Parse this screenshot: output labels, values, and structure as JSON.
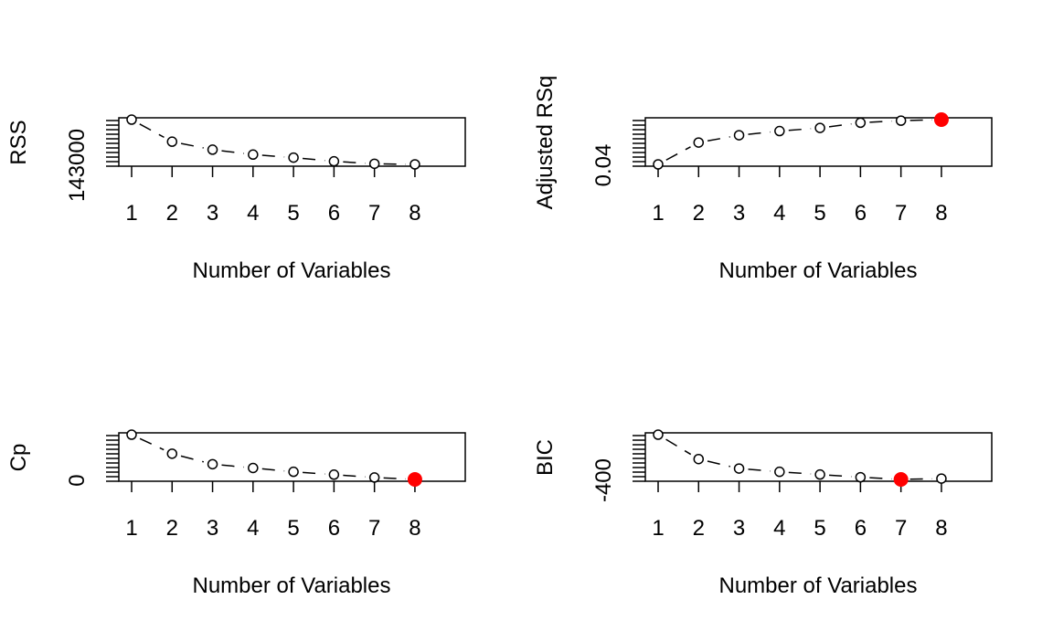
{
  "figure": {
    "colors": {
      "axis": "#000000",
      "point": "#000000",
      "highlight": "#ff0000",
      "background": "#ffffff"
    }
  },
  "chart_data": [
    {
      "type": "line",
      "line_style": "dashed",
      "marker": "open-circle",
      "xlabel": "Number of Variables",
      "ylabel": "RSS",
      "x": [
        1,
        2,
        3,
        4,
        5,
        6,
        7,
        8
      ],
      "x_tick_labels": [
        "1",
        "2",
        "3",
        "4",
        "5",
        "6",
        "7",
        "8"
      ],
      "y": [
        147600,
        145800,
        145150,
        144750,
        144500,
        144200,
        144000,
        143950
      ],
      "ylim": [
        143950,
        147600
      ],
      "y_tick_labels": [
        "143000"
      ],
      "highlight_x": null
    },
    {
      "type": "line",
      "line_style": "dashed",
      "marker": "open-circle",
      "xlabel": "Number of Variables",
      "ylabel": "Adjusted RSq",
      "x": [
        1,
        2,
        3,
        4,
        5,
        6,
        7,
        8
      ],
      "x_tick_labels": [
        "1",
        "2",
        "3",
        "4",
        "5",
        "6",
        "7",
        "8"
      ],
      "y": [
        0.04,
        0.0505,
        0.054,
        0.056,
        0.0575,
        0.06,
        0.061,
        0.0615
      ],
      "ylim": [
        0.04,
        0.0615
      ],
      "y_tick_labels": [
        "0.04"
      ],
      "highlight_x": 8
    },
    {
      "type": "line",
      "line_style": "dashed",
      "marker": "open-circle",
      "xlabel": "Number of Variables",
      "ylabel": "Cp",
      "x": [
        1,
        2,
        3,
        4,
        5,
        6,
        7,
        8
      ],
      "x_tick_labels": [
        "1",
        "2",
        "3",
        "4",
        "5",
        "6",
        "7",
        "8"
      ],
      "y": [
        47,
        27,
        16,
        12,
        8,
        5,
        2,
        0
      ],
      "ylim": [
        0,
        47
      ],
      "y_tick_labels": [
        "0"
      ],
      "highlight_x": 8
    },
    {
      "type": "line",
      "line_style": "dashed",
      "marker": "open-circle",
      "xlabel": "Number of Variables",
      "ylabel": "BIC",
      "x": [
        1,
        2,
        3,
        4,
        5,
        6,
        7,
        8
      ],
      "x_tick_labels": [
        "1",
        "2",
        "3",
        "4",
        "5",
        "6",
        "7",
        "8"
      ],
      "y": [
        -235,
        -325,
        -360,
        -372,
        -382,
        -392,
        -400,
        -397
      ],
      "ylim": [
        -400,
        -235
      ],
      "y_tick_labels": [
        "-400"
      ],
      "highlight_x": 7
    }
  ]
}
